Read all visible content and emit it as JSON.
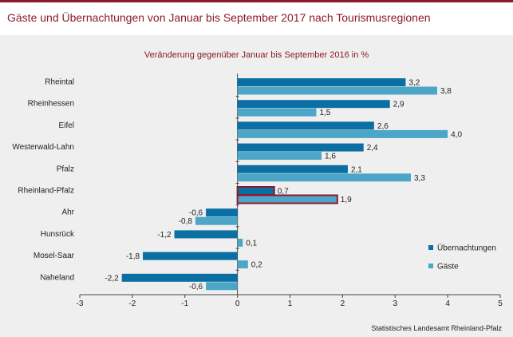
{
  "header": {
    "title": "Gäste und Übernachtungen von Januar bis September 2017 nach Tourismusregionen"
  },
  "footer": {
    "source": "Statistisches Landesamt Rheinland-Pfalz"
  },
  "colors": {
    "brand": "#8b1a2b",
    "uebernachtungen": "#0b6fa4",
    "gaeste": "#4da6c8",
    "highlight_outline": "#8b1a2b"
  },
  "chart_data": {
    "type": "bar",
    "orientation": "horizontal",
    "title": "Veränderung gegenüber Januar bis September 2016 in %",
    "categories": [
      "Rheintal",
      "Rheinhessen",
      "Eifel",
      "Westerwald-Lahn",
      "Pfalz",
      "Rheinland-Pfalz",
      "Ahr",
      "Hunsrück",
      "Mosel-Saar",
      "Naheland"
    ],
    "series": [
      {
        "name": "Übernachtungen",
        "values": [
          3.2,
          2.9,
          2.6,
          2.4,
          2.1,
          0.7,
          -0.6,
          -1.2,
          -1.8,
          -2.2
        ],
        "labels": [
          "3,2",
          "2,9",
          "2,6",
          "2,4",
          "2,1",
          "0,7",
          "-0,6",
          "-1,2",
          "-1,8",
          "-2,2"
        ]
      },
      {
        "name": "Gäste",
        "values": [
          3.8,
          1.5,
          4.0,
          1.6,
          3.3,
          1.9,
          -0.8,
          0.1,
          0.2,
          -0.6
        ],
        "labels": [
          "3,8",
          "1,5",
          "4,0",
          "1,6",
          "3,3",
          "1,9",
          "-0,8",
          "0,1",
          "0,2",
          "-0,6"
        ]
      }
    ],
    "highlighted_category": "Rheinland-Pfalz",
    "xlim": [
      -3,
      5
    ],
    "xticks": [
      "-3",
      "-2",
      "-1",
      "0",
      "1",
      "2",
      "3",
      "4",
      "5"
    ],
    "xlabel": "",
    "ylabel": "",
    "grid": false,
    "legend_position": "bottom-right"
  }
}
